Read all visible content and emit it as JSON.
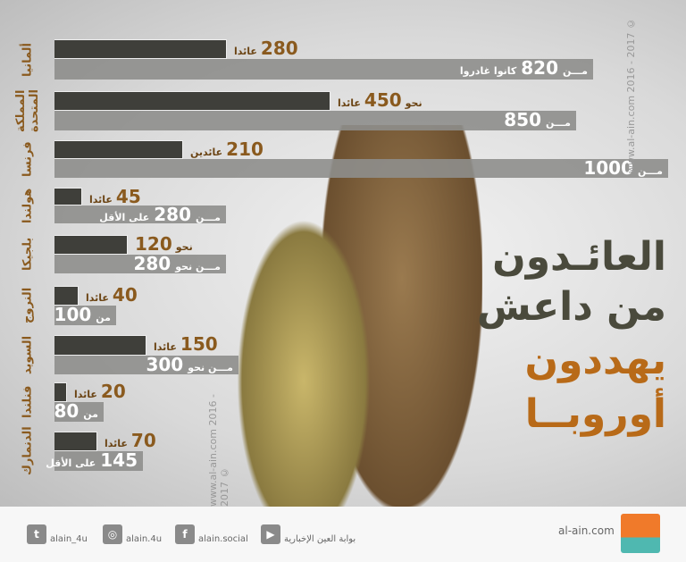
{
  "chart_data": {
    "type": "bar",
    "orientation": "horizontal",
    "categories": [
      "ألمانيا",
      "المملكة المتحدة",
      "فرنسا",
      "هولندا",
      "بلجيكا",
      "النروج",
      "السويد",
      "فنلندا",
      "الدنمارك"
    ],
    "series": [
      {
        "values": [
          280,
          450,
          210,
          45,
          120,
          40,
          150,
          20,
          70
        ],
        "labels": [
          {
            "num": "280",
            "word": "عائدا"
          },
          {
            "num": "450",
            "word": "عائدا",
            "pre": "نحو"
          },
          {
            "num": "210",
            "word": "عائدين"
          },
          {
            "num": "45",
            "word": "عائدا"
          },
          {
            "num": "120",
            "pre": "نحو"
          },
          {
            "num": "40",
            "word": "عائدا"
          },
          {
            "num": "150",
            "word": "عائدا"
          },
          {
            "num": "20",
            "word": "عائدا"
          },
          {
            "num": "70",
            "word": "عائدا"
          }
        ]
      },
      {
        "values": [
          820,
          850,
          1000,
          280,
          280,
          100,
          300,
          80,
          145
        ],
        "labels": [
          {
            "pre": "مـــن",
            "num": "820",
            "word": "كانوا غادروا"
          },
          {
            "pre": "مـــن",
            "num": "850"
          },
          {
            "pre": "مـــن",
            "num": "1000"
          },
          {
            "pre": "مـــن",
            "num": "280",
            "word": "على الأقل"
          },
          {
            "pre": "مـــن نحو",
            "num": "280"
          },
          {
            "pre": "من",
            "num": "100"
          },
          {
            "pre": "مـــن نحو",
            "num": "300"
          },
          {
            "pre": "من",
            "num": "80"
          },
          {
            "num": "145",
            "word": "على الأقل"
          }
        ]
      }
    ],
    "colors": {
      "returnees": "#3f3f3a",
      "departed": "#8e8e8c",
      "accent": "#8a5a1e"
    }
  },
  "title": {
    "line1": "العائـدون",
    "line2": "من داعش",
    "line3": "يهددون",
    "line4": "أوروبــا"
  },
  "watermark": {
    "site": "www.al-ain.com",
    "years": "2016 - 2017",
    "copy": "©"
  },
  "footer": {
    "twitter": "alain_4u",
    "instagram": "alain.4u",
    "facebook": "alain.social",
    "youtube": "بوابة العين الإخبارية",
    "site": "al-ain.com",
    "logo": "العين"
  }
}
